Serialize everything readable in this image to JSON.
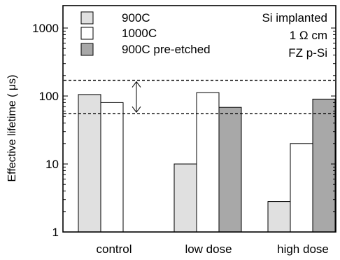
{
  "chart_data": {
    "type": "bar",
    "title": "",
    "xlabel": "",
    "ylabel": "Effective lifetime ( μs)",
    "y_scale": "log",
    "ylim": [
      1,
      1500
    ],
    "y_ticks": [
      1,
      10,
      100,
      1000
    ],
    "y_tick_labels": [
      "1",
      "10",
      "100",
      "1000"
    ],
    "categories": [
      "control",
      "low dose",
      "high dose"
    ],
    "series": [
      {
        "name": "900C",
        "values": [
          105,
          10,
          2.8
        ],
        "color": "#e0e0e0"
      },
      {
        "name": "1000C",
        "values": [
          80,
          112,
          20
        ],
        "color": "#ffffff"
      },
      {
        "name": "900C pre-etched",
        "values": [
          null,
          68,
          90
        ],
        "color": "#a8a8a8"
      }
    ],
    "reference_lines": [
      {
        "y": 170,
        "style": "dashed"
      },
      {
        "y": 55,
        "style": "dashed"
      }
    ],
    "annotation_arrow": {
      "from": 170,
      "to": 55,
      "style": "double-headed"
    },
    "annotations": [
      "Si implanted",
      "1 Ω cm",
      "FZ p-Si"
    ],
    "legend_position": "top-left",
    "grid": false
  }
}
